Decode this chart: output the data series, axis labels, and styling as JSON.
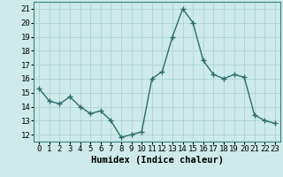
{
  "x": [
    0,
    1,
    2,
    3,
    4,
    5,
    6,
    7,
    8,
    9,
    10,
    11,
    12,
    13,
    14,
    15,
    16,
    17,
    18,
    19,
    20,
    21,
    22,
    23
  ],
  "y": [
    15.3,
    14.4,
    14.2,
    14.7,
    14.0,
    13.5,
    13.7,
    13.0,
    11.8,
    12.0,
    12.2,
    16.0,
    16.5,
    19.0,
    21.0,
    20.0,
    17.3,
    16.3,
    16.0,
    16.3,
    16.1,
    13.4,
    13.0,
    12.8
  ],
  "line_color": "#2d6b6b",
  "marker": "+",
  "marker_size": 4,
  "marker_lw": 1.0,
  "line_width": 1.0,
  "bg_color": "#ceeaea",
  "grid_color": "#b0d4d4",
  "xlabel": "Humidex (Indice chaleur)",
  "xlim": [
    -0.5,
    23.5
  ],
  "ylim": [
    11.5,
    21.5
  ],
  "yticks": [
    12,
    13,
    14,
    15,
    16,
    17,
    18,
    19,
    20,
    21
  ],
  "xticks": [
    0,
    1,
    2,
    3,
    4,
    5,
    6,
    7,
    8,
    9,
    10,
    11,
    12,
    13,
    14,
    15,
    16,
    17,
    18,
    19,
    20,
    21,
    22,
    23
  ],
  "tick_fontsize": 6.5,
  "xlabel_fontsize": 7.5
}
